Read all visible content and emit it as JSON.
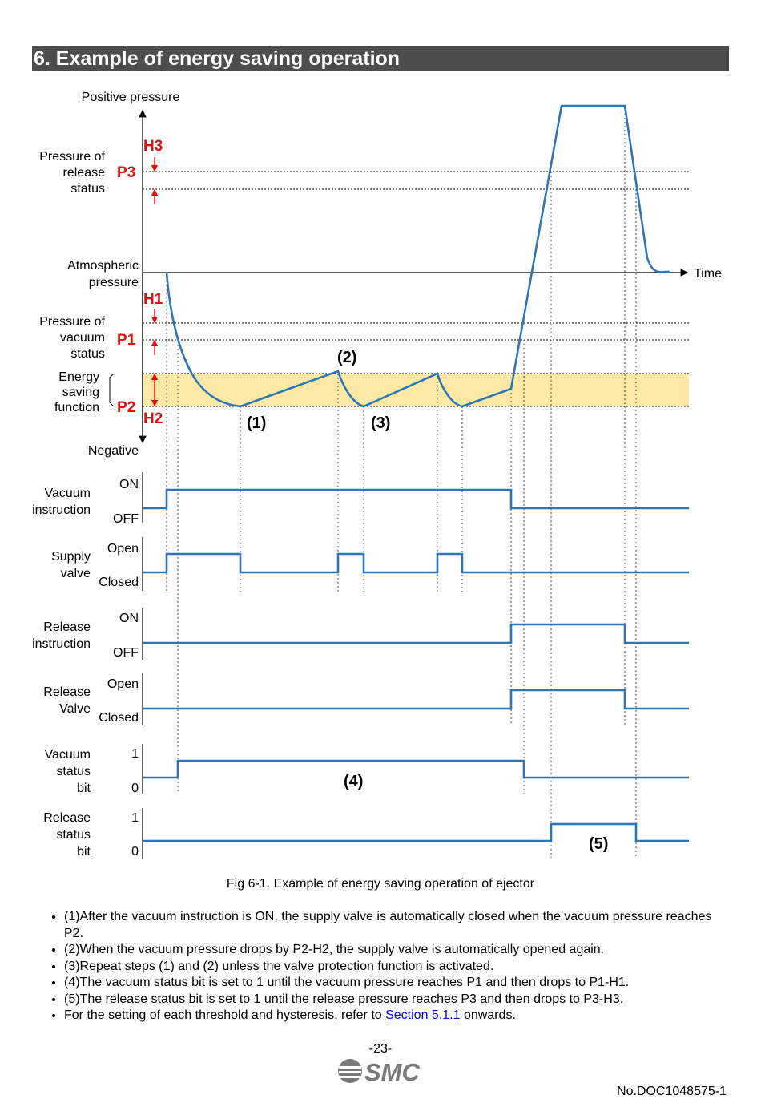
{
  "section_title": "6. Example of energy saving operation",
  "diagram": {
    "axis_top_label": "Positive pressure",
    "axis_bottom_label": "Negative",
    "time_label": "Time",
    "left_labels": {
      "release_status": [
        "Pressure of",
        "release",
        "status"
      ],
      "atmospheric": [
        "Atmospheric",
        "pressure"
      ],
      "vacuum_status": [
        "Pressure of",
        "vacuum",
        "status"
      ],
      "energy_saving": [
        "Energy",
        "saving",
        "function"
      ]
    },
    "thresholds": {
      "H3": "H3",
      "P3": "P3",
      "H1": "H1",
      "P1": "P1",
      "P2": "P2",
      "H2": "H2"
    },
    "step_labels": {
      "s1": "(1)",
      "s2": "(2)",
      "s3": "(3)",
      "s4": "(4)",
      "s5": "(5)"
    },
    "signals": [
      {
        "name": [
          "Vacuum",
          "instruction"
        ],
        "high": "ON",
        "low": "OFF"
      },
      {
        "name": [
          "Supply",
          "valve"
        ],
        "high": "Open",
        "low": "Closed"
      },
      {
        "name": [
          "Release",
          "instruction"
        ],
        "high": "ON",
        "low": "OFF"
      },
      {
        "name": [
          "Release",
          "Valve"
        ],
        "high": "Open",
        "low": "Closed"
      },
      {
        "name": [
          "Vacuum",
          "status",
          "bit"
        ],
        "high": "1",
        "low": "0"
      },
      {
        "name": [
          "Release",
          "status",
          "bit"
        ],
        "high": "1",
        "low": "0"
      }
    ],
    "colors": {
      "signal": "#2e75b6",
      "threshold_label": "#e01010",
      "energy_band": "#fde9a6"
    }
  },
  "caption": "Fig 6-1. Example of energy saving operation of ejector",
  "notes": [
    "(1)After the vacuum instruction is ON, the supply valve is automatically closed when the vacuum pressure reaches P2.",
    "(2)When the vacuum pressure drops by P2-H2, the supply valve is automatically opened again.",
    "(3)Repeat steps (1) and (2) unless the valve protection function is activated.",
    "(4)The vacuum status bit is set to 1 until the vacuum pressure reaches P1 and then drops to P1-H1.",
    "(5)The release status bit is set to 1 until the release pressure reaches P3 and then drops to P3-H3."
  ],
  "last_note": {
    "prefix": "For the setting of each threshold and hysteresis, refer to ",
    "link": "Section 5.1.1",
    "suffix": " onwards."
  },
  "page_number": "-23-",
  "logo_text": "SMC",
  "doc_number": "No.DOC1048575-1"
}
